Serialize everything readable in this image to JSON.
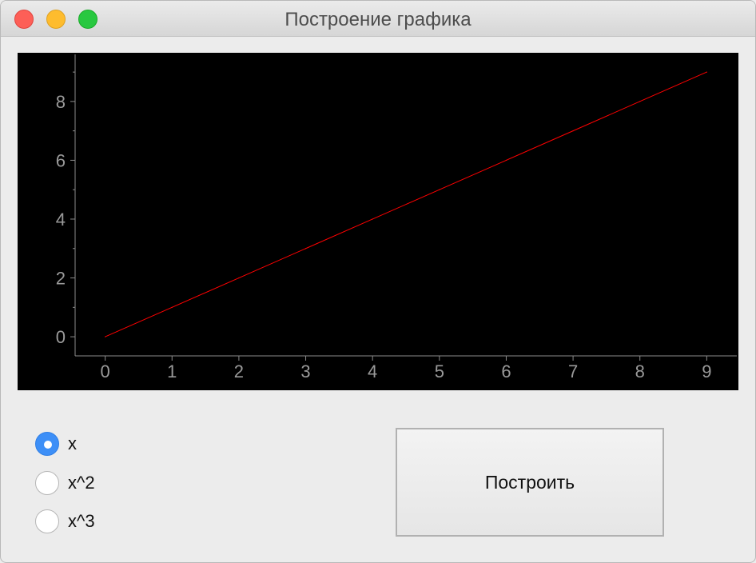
{
  "window": {
    "title": "Построение графика"
  },
  "plot": {
    "background": "#000000",
    "line_color": "#ff0000",
    "axis_color": "#8c8c8c",
    "tick_label_color": "#9a9a9a"
  },
  "chart_data": {
    "type": "line",
    "x": [
      0,
      1,
      2,
      3,
      4,
      5,
      6,
      7,
      8,
      9
    ],
    "series": [
      {
        "values": [
          0,
          1,
          2,
          3,
          4,
          5,
          6,
          7,
          8,
          9
        ]
      }
    ],
    "xticks": [
      "0",
      "1",
      "2",
      "3",
      "4",
      "5",
      "6",
      "7",
      "8",
      "9"
    ],
    "yticks": [
      "0",
      "2",
      "4",
      "6",
      "8"
    ],
    "xlim": [
      -0.45,
      9.45
    ],
    "ylim": [
      -0.65,
      9.6
    ],
    "grid": false,
    "title": "",
    "xlabel": "",
    "ylabel": ""
  },
  "options": {
    "items": [
      {
        "label": "x",
        "checked": true
      },
      {
        "label": "x^2",
        "checked": false
      },
      {
        "label": "x^3",
        "checked": false
      }
    ]
  },
  "actions": {
    "build_label": "Построить"
  }
}
